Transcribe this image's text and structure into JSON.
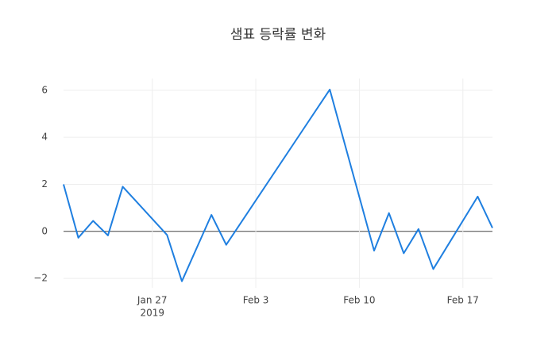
{
  "chart_data": {
    "type": "line",
    "title": "샘표 등락률 변화",
    "x": [
      "2019-01-21",
      "2019-01-22",
      "2019-01-23",
      "2019-01-24",
      "2019-01-25",
      "2019-01-28",
      "2019-01-29",
      "2019-01-31",
      "2019-02-01",
      "2019-02-08",
      "2019-02-11",
      "2019-02-12",
      "2019-02-13",
      "2019-02-14",
      "2019-02-15",
      "2019-02-18",
      "2019-02-19"
    ],
    "series": [
      {
        "color": "#1f7fe0",
        "values": [
          2.0,
          -0.27,
          0.45,
          -0.17,
          1.9,
          -0.15,
          -2.12,
          0.7,
          -0.57,
          6.03,
          -0.82,
          0.78,
          -0.93,
          0.1,
          -1.6,
          1.48,
          0.15
        ]
      }
    ],
    "xlim": [
      "2019-01-21",
      "2019-02-19"
    ],
    "xticks": [
      {
        "value": "2019-01-27",
        "label": "Jan 27"
      },
      {
        "value": "2019-02-03",
        "label": "Feb 3"
      },
      {
        "value": "2019-02-10",
        "label": "Feb 10"
      },
      {
        "value": "2019-02-17",
        "label": "Feb 17"
      }
    ],
    "xtick_year": "2019",
    "ylim": [
      -2.4,
      6.5
    ],
    "yticks": [
      {
        "value": -2,
        "label": "−2"
      },
      0,
      2,
      4,
      6
    ],
    "grid": true,
    "zeroline": true
  }
}
